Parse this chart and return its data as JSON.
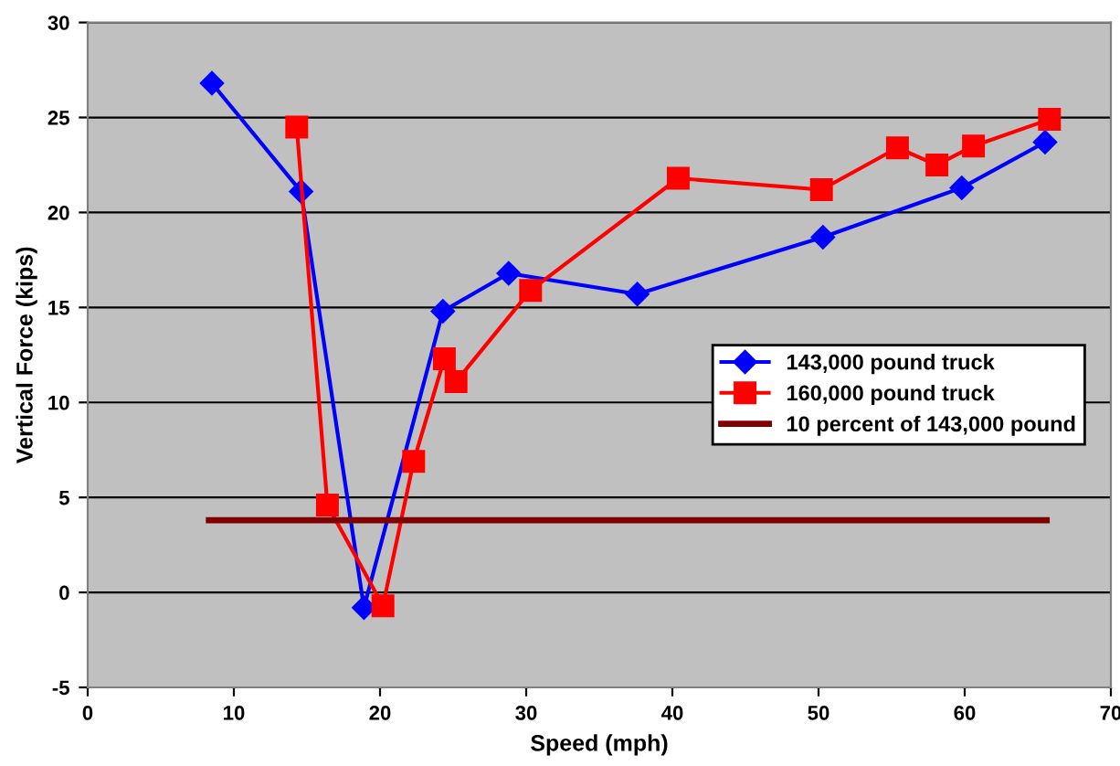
{
  "chart_data": {
    "type": "line",
    "xlabel": "Speed (mph)",
    "ylabel": "Vertical Force (kips)",
    "xlim": [
      0,
      70
    ],
    "xticks": [
      0,
      10,
      20,
      30,
      40,
      50,
      60,
      70
    ],
    "ylim": [
      -5,
      30
    ],
    "yticks": [
      -5,
      0,
      5,
      10,
      15,
      20,
      25,
      30
    ],
    "grid": "y",
    "legend": "right",
    "series": [
      {
        "name": "143,000 pound truck",
        "color": "#0000ff",
        "marker": "diamond",
        "x": [
          8.5,
          14.6,
          18.9,
          24.3,
          28.8,
          37.6,
          50.3,
          59.8,
          65.5
        ],
        "values": [
          26.8,
          21.1,
          -0.8,
          14.8,
          16.8,
          15.7,
          18.7,
          21.3,
          23.7
        ]
      },
      {
        "name": "160,000 pound truck",
        "color": "#ff0000",
        "marker": "square",
        "x": [
          14.3,
          16.4,
          20.2,
          22.3,
          24.4,
          25.2,
          30.3,
          40.4,
          50.2,
          55.4,
          58.1,
          60.6,
          65.8
        ],
        "values": [
          24.5,
          4.6,
          -0.7,
          6.9,
          12.3,
          11.1,
          15.9,
          21.8,
          21.2,
          23.4,
          22.5,
          23.5,
          24.9
        ]
      },
      {
        "name": "10 percent of 143,000 pound",
        "color": "#800000",
        "marker": "none",
        "x": [
          8.3,
          65.6
        ],
        "values": [
          3.8,
          3.8
        ]
      }
    ]
  }
}
